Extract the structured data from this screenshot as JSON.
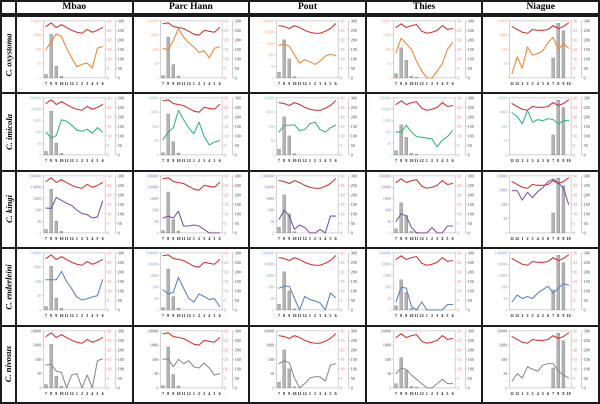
{
  "grid": {
    "corner": "",
    "columns": [
      "Mbao",
      "Parc Hann",
      "Pout",
      "Thies",
      "Niague"
    ],
    "rows": [
      "C. oxystoma",
      "C. imicola",
      "C. kingi",
      "C. enderleini",
      "C. nivosus"
    ]
  },
  "colors": {
    "temperature_line": "#cf3430",
    "temperature_labels": "#e57373",
    "rainfall_bar_fill": "#b3b3b3",
    "rainfall_bar_stroke": "#858585",
    "rainfall_labels": "#404040",
    "axis_line": "#b5b5b5",
    "x_labels": "#111111",
    "species": {
      "C. oxystoma": {
        "line": "#ee8634",
        "labels": "#f2a878"
      },
      "C. imicola": {
        "line": "#35b577",
        "labels": "#7fcba8"
      },
      "C. kingi": {
        "line": "#7a52a8",
        "labels": "#8f6cc0"
      },
      "C. enderleini": {
        "line": "#5b83c4",
        "labels": "#85a3d6"
      },
      "C. nivosus": {
        "line": "#8c8c8c",
        "labels": "#4d4d4d"
      }
    }
  },
  "chart_data": {
    "type": "bar+line",
    "layout": "small multiples: 5 species rows x 5 site columns; each panel has gray rainfall bars (outer right axis, mm), a species-colored monthly abundance line (left log axis), and a red temperature line (inner right axis, degC)",
    "values_estimated": true,
    "axes": {
      "left_abundance_log": {
        "min": 1,
        "max_per_panel": "10^4 or 10^5",
        "scale": "log10"
      },
      "right_temperature_c": {
        "min": 0,
        "max": 30,
        "ticks": [
          0,
          5,
          10,
          15,
          20,
          25,
          30
        ]
      },
      "outer_right_rainfall_mm": {
        "min": 0,
        "max": 300,
        "ticks": [
          0,
          50,
          100,
          150,
          200,
          250,
          300
        ]
      }
    },
    "x_months": {
      "Mbao": [
        7,
        8,
        9,
        10,
        11,
        12,
        1,
        2,
        3,
        4,
        5,
        6
      ],
      "Parc Hann": [
        7,
        8,
        9,
        10,
        11,
        12,
        1,
        2,
        3,
        4,
        5,
        6
      ],
      "Pout": [
        7,
        8,
        9,
        10,
        11,
        12,
        1,
        2,
        3,
        4,
        5,
        6
      ],
      "Thies": [
        7,
        8,
        9,
        10,
        11,
        12,
        1,
        2,
        3,
        4,
        5,
        6
      ],
      "Niague": [
        11,
        12,
        1,
        2,
        3,
        4,
        5,
        6,
        7,
        8,
        9,
        10
      ]
    },
    "rainfall_mm_by_site": {
      "Mbao": [
        18,
        230,
        62,
        8,
        0,
        0,
        0,
        0,
        0,
        0,
        0,
        0
      ],
      "Parc Hann": [
        12,
        215,
        70,
        10,
        0,
        0,
        0,
        0,
        0,
        0,
        0,
        0
      ],
      "Pout": [
        30,
        200,
        100,
        6,
        0,
        0,
        0,
        0,
        0,
        0,
        0,
        0
      ],
      "Thies": [
        22,
        158,
        92,
        8,
        4,
        0,
        0,
        0,
        0,
        0,
        0,
        0
      ],
      "Niague": [
        0,
        0,
        0,
        0,
        0,
        0,
        0,
        0,
        105,
        288,
        248,
        0
      ]
    },
    "temperature_c_by_site": {
      "Mbao": [
        27,
        29,
        26.5,
        28,
        26.5,
        25,
        24,
        23.5,
        25.5,
        24,
        25,
        26.5
      ],
      "Parc Hann": [
        28.5,
        29,
        27,
        26.5,
        26,
        24.5,
        23,
        22.5,
        25,
        24.5,
        24,
        26.5
      ],
      "Pout": [
        27.5,
        27,
        26,
        27.5,
        26.5,
        25,
        24,
        23.5,
        23.5,
        24.5,
        26,
        28.5
      ],
      "Thies": [
        26.5,
        28.5,
        26.5,
        27.5,
        28,
        24.5,
        23.5,
        24,
        25,
        27.5,
        25.5,
        26
      ],
      "Niague": [
        27,
        25.5,
        24,
        23.5,
        25.5,
        25,
        25,
        25.5,
        27.5,
        26,
        27,
        29
      ]
    },
    "abundance_by_species_site": {
      "C. oxystoma": {
        "Mbao": {
          "ymax": 10000,
          "values": [
            100,
            350,
            1200,
            800,
            120,
            25,
            6,
            9,
            11,
            5,
            120,
            160
          ]
        },
        "Parc Hann": {
          "ymax": 10000,
          "values": [
            120,
            90,
            400,
            3000,
            700,
            300,
            150,
            60,
            80,
            25,
            120,
            150
          ]
        },
        "Pout": {
          "ymax": 100000,
          "values": [
            700,
            900,
            600,
            100,
            20,
            40,
            25,
            15,
            30,
            80,
            120,
            90
          ]
        },
        "Thies": {
          "ymax": 10000,
          "values": [
            60,
            600,
            250,
            100,
            15,
            3,
            1,
            1,
            3,
            10,
            100,
            300
          ]
        },
        "Niague": {
          "ymax": 10000,
          "values": [
            2,
            30,
            5,
            150,
            40,
            50,
            80,
            300,
            700,
            100,
            250,
            120
          ]
        }
      },
      "C. imicola": {
        "Mbao": {
          "ymax": 100000,
          "values": [
            100,
            30,
            50,
            1200,
            900,
            400,
            150,
            120,
            180,
            80,
            250,
            100
          ]
        },
        "Parc Hann": {
          "ymax": 10000,
          "values": [
            12,
            40,
            80,
            1300,
            300,
            80,
            30,
            200,
            20,
            5,
            8,
            10
          ]
        },
        "Pout": {
          "ymax": 10000,
          "values": [
            40,
            120,
            120,
            130,
            50,
            60,
            150,
            200,
            60,
            40,
            80,
            120
          ]
        },
        "Thies": {
          "ymax": 100000,
          "values": [
            100,
            100,
            400,
            100,
            40,
            35,
            30,
            25,
            5,
            20,
            40,
            130
          ]
        },
        "Niague": {
          "ymax": 10000,
          "values": [
            900,
            500,
            150,
            1300,
            200,
            300,
            250,
            350,
            300,
            150,
            250,
            250
          ]
        }
      },
      "C. kingi": {
        "Mbao": {
          "ymax": 100000,
          "values": [
            150,
            140,
            1300,
            700,
            400,
            250,
            100,
            50,
            40,
            20,
            25,
            600
          ]
        },
        "Parc Hann": {
          "ymax": 100000,
          "values": [
            20,
            30,
            20,
            80,
            4,
            4,
            5,
            4,
            2,
            1,
            1,
            1
          ]
        },
        "Pout": {
          "ymax": 100000,
          "values": [
            15,
            100,
            30,
            2,
            5,
            3,
            1,
            1,
            2,
            1,
            30,
            30
          ]
        },
        "Thies": {
          "ymax": 100000,
          "values": [
            10,
            50,
            30,
            3,
            1,
            1,
            1,
            3,
            1,
            1,
            4,
            4
          ]
        },
        "Niague": {
          "ymax": 10000,
          "values": [
            900,
            900,
            200,
            700,
            300,
            800,
            1500,
            4000,
            6000,
            3000,
            1500,
            100
          ]
        }
      },
      "C. enderleini": {
        "Mbao": {
          "ymax": 10000,
          "values": [
            130,
            130,
            130,
            500,
            100,
            30,
            8,
            5,
            6,
            8,
            10,
            130
          ]
        },
        "Parc Hann": {
          "ymax": 100000,
          "values": [
            60,
            25,
            35,
            700,
            80,
            10,
            5,
            25,
            15,
            8,
            10,
            2
          ]
        },
        "Pout": {
          "ymax": 100000,
          "values": [
            80,
            120,
            120,
            10,
            1,
            15,
            8,
            6,
            4,
            1,
            30,
            12
          ]
        },
        "Thies": {
          "ymax": 100000,
          "values": [
            5,
            100,
            80,
            2,
            1,
            5,
            1,
            1,
            1,
            1,
            3,
            3
          ]
        },
        "Niague": {
          "ymax": 100000,
          "values": [
            5,
            20,
            10,
            15,
            10,
            30,
            60,
            120,
            30,
            80,
            200,
            150
          ]
        }
      },
      "C. nivosus": {
        "Mbao": {
          "ymax": 10000,
          "values": [
            40,
            45,
            15,
            12,
            1,
            8,
            10,
            1,
            8,
            1,
            80,
            110
          ]
        },
        "Parc Hann": {
          "ymax": 10000,
          "values": [
            100,
            110,
            30,
            100,
            50,
            80,
            30,
            25,
            55,
            25,
            8,
            10
          ]
        },
        "Pout": {
          "ymax": 10000,
          "values": [
            50,
            80,
            60,
            5,
            1,
            2,
            5,
            6,
            6,
            3,
            40,
            50
          ]
        },
        "Thies": {
          "ymax": 10000,
          "values": [
            10,
            25,
            20,
            8,
            4,
            2,
            1,
            1,
            2,
            4,
            2,
            2
          ]
        },
        "Niague": {
          "ymax": 10000,
          "values": [
            3,
            10,
            5,
            30,
            20,
            15,
            40,
            50,
            50,
            15,
            8,
            5
          ]
        }
      }
    }
  }
}
